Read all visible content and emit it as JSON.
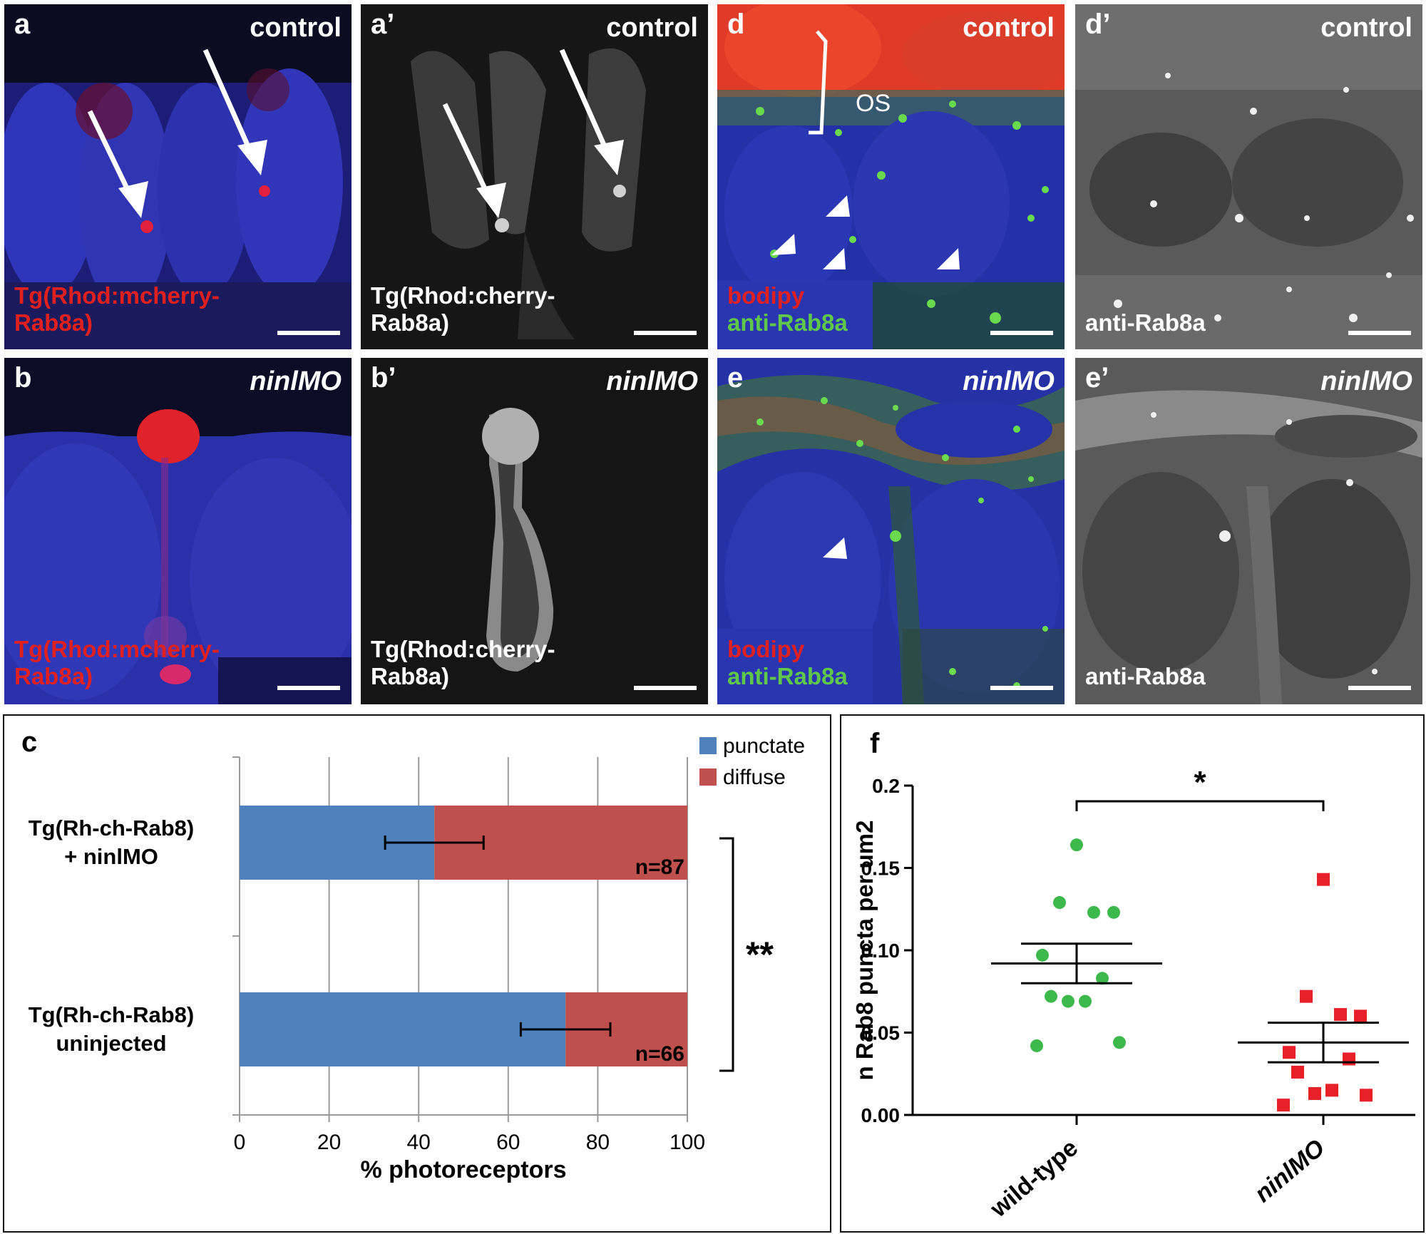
{
  "panels": {
    "a": {
      "label": "a",
      "condition": "control",
      "stain": [
        "Tg(Rhod:mcherry-",
        "Rab8a)"
      ]
    },
    "a2": {
      "label": "a’",
      "condition": "control",
      "stain": [
        "Tg(Rhod:cherry-",
        "Rab8a)"
      ]
    },
    "d": {
      "label": "d",
      "condition": "control",
      "os_label": "OS",
      "stain_red": "bodipy",
      "stain_green": "anti-Rab8a"
    },
    "d2": {
      "label": "d’",
      "condition": "control",
      "stain": "anti-Rab8a"
    },
    "b": {
      "label": "b",
      "condition": "ninlMO",
      "stain": [
        "Tg(Rhod:mcherry-",
        "Rab8a)"
      ]
    },
    "b2": {
      "label": "b’",
      "condition": "ninlMO",
      "stain": [
        "Tg(Rhod:cherry-",
        "Rab8a)"
      ]
    },
    "e": {
      "label": "e",
      "condition": "ninlMO",
      "stain_red": "bodipy",
      "stain_green": "anti-Rab8a"
    },
    "e2": {
      "label": "e’",
      "condition": "ninlMO",
      "stain": "anti-Rab8a"
    }
  },
  "chart_data": [
    {
      "panel": "c",
      "type": "bar",
      "orientation": "horizontal",
      "stacked": true,
      "categories": [
        [
          "Tg(Rh-ch-Rab8)",
          "+ ninlMO"
        ],
        [
          "Tg(Rh-ch-Rab8)",
          "uninjected"
        ]
      ],
      "series": [
        {
          "name": "punctate",
          "values": [
            43.5,
            72.8
          ],
          "error": [
            11,
            10
          ],
          "color": "#4f81bd"
        },
        {
          "name": "diffuse",
          "values": [
            56.5,
            27.2
          ],
          "color": "#c0504d"
        }
      ],
      "n_labels": [
        "n=87",
        "n=66"
      ],
      "significance": "**",
      "xlabel": "% photoreceptors",
      "xlim": [
        0,
        100
      ],
      "xticks": [
        0,
        20,
        40,
        60,
        80,
        100
      ],
      "grid": true,
      "legend": "top-right"
    },
    {
      "panel": "f",
      "type": "scatter",
      "ylabel": "n Rab8 puncta per um2",
      "categories": [
        "wild-type",
        "ninlMO"
      ],
      "ylim": [
        0,
        0.2
      ],
      "yticks": [
        "0.00",
        "0.05",
        "0.10",
        "0.15",
        "0.2"
      ],
      "significance": "*",
      "series": [
        {
          "name": "wild-type",
          "color": "#3cb94a",
          "marker": "circle",
          "values": [
            0.164,
            0.129,
            0.123,
            0.123,
            0.097,
            0.083,
            0.072,
            0.069,
            0.069,
            0.044,
            0.042
          ],
          "mean": 0.092,
          "sem": 0.012
        },
        {
          "name": "ninlMO",
          "color": "#e8202a",
          "marker": "square",
          "values": [
            0.143,
            0.072,
            0.061,
            0.06,
            0.038,
            0.034,
            0.026,
            0.015,
            0.013,
            0.012,
            0.006
          ],
          "mean": 0.044,
          "sem": 0.012
        }
      ]
    }
  ]
}
